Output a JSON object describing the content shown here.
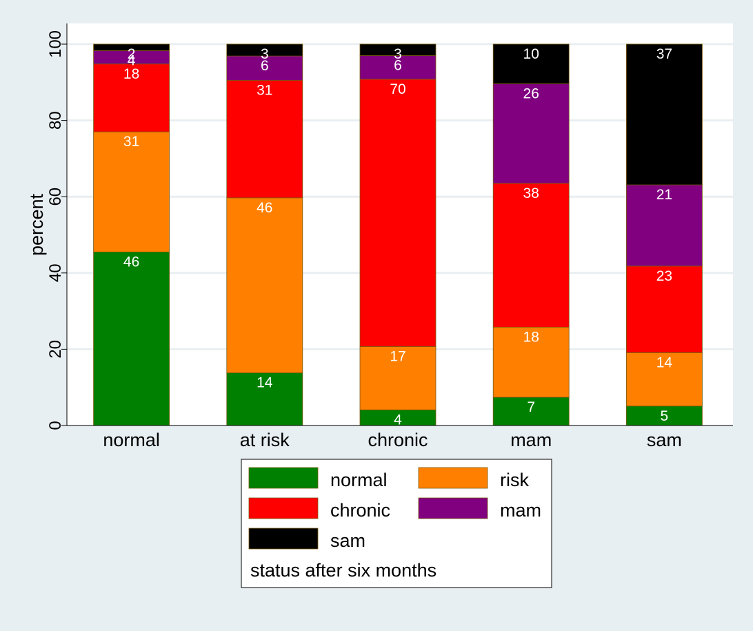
{
  "chart_data": {
    "type": "bar",
    "stacked": true,
    "title": "",
    "xlabel": "",
    "ylabel": "percent",
    "ylim": [
      0,
      100
    ],
    "yticks": [
      0,
      20,
      40,
      60,
      80,
      100
    ],
    "grid": true,
    "categories": [
      "normal",
      "at risk",
      "chronic",
      "mam",
      "sam"
    ],
    "series": [
      {
        "name": "normal",
        "color": "#008000",
        "values": [
          45.5,
          13.8,
          4.1,
          7.4,
          5.1
        ],
        "labels": [
          "46",
          "14",
          "4",
          "7",
          "5"
        ]
      },
      {
        "name": "risk",
        "color": "#ff8000",
        "values": [
          31.5,
          45.9,
          16.6,
          18.4,
          14.0
        ],
        "labels": [
          "31",
          "46",
          "17",
          "18",
          "14"
        ]
      },
      {
        "name": "chronic",
        "color": "#ff0000",
        "values": [
          17.8,
          30.8,
          70.1,
          37.7,
          22.7
        ],
        "labels": [
          "18",
          "31",
          "70",
          "38",
          "23"
        ]
      },
      {
        "name": "mam",
        "color": "#800080",
        "values": [
          3.5,
          6.4,
          6.2,
          26.1,
          21.3
        ],
        "labels": [
          "4",
          "6",
          "6",
          "26",
          "21"
        ]
      },
      {
        "name": "sam",
        "color": "#000000",
        "values": [
          1.7,
          3.1,
          3.0,
          10.4,
          36.9
        ],
        "labels": [
          "2",
          "3",
          "3",
          "10",
          "37"
        ]
      }
    ],
    "legend": {
      "position": "bottom",
      "columns": 2,
      "title": "status after six months"
    }
  }
}
